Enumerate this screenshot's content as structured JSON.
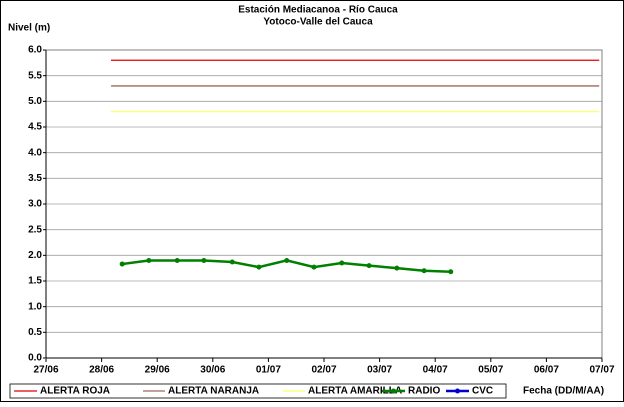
{
  "chart_data": {
    "type": "line",
    "title": "Estación Mediacanoa - Río Cauca",
    "subtitle": "Yotoco-Valle del Cauca",
    "y_label": "Nivel (m)",
    "x_label": "Fecha (DD/M/AA)",
    "xlim": [
      0,
      10
    ],
    "xticks": [
      {
        "value": 0,
        "label": "27/06"
      },
      {
        "value": 1,
        "label": "28/06"
      },
      {
        "value": 2,
        "label": "29/06"
      },
      {
        "value": 3,
        "label": "30/06"
      },
      {
        "value": 4,
        "label": "01/07"
      },
      {
        "value": 5,
        "label": "02/07"
      },
      {
        "value": 6,
        "label": "03/07"
      },
      {
        "value": 7,
        "label": "04/07"
      },
      {
        "value": 8,
        "label": "05/07"
      },
      {
        "value": 9,
        "label": "06/07"
      },
      {
        "value": 10,
        "label": "07/07"
      }
    ],
    "ylim": [
      0,
      6
    ],
    "yticks": [
      {
        "value": 0,
        "label": "0.0"
      },
      0.5,
      {
        "value": 1,
        "label": "1.0"
      },
      1.5,
      {
        "value": 2,
        "label": "2.0"
      },
      2.5,
      {
        "value": 3,
        "label": "3.0"
      },
      3.5,
      {
        "value": 4,
        "label": "4.0"
      },
      4.5,
      {
        "value": 5,
        "label": "5.0"
      },
      5.5,
      {
        "value": 6,
        "label": "6.0"
      }
    ],
    "grid": true,
    "legend": "bottom",
    "series": [
      {
        "name": "ALERTA ROJA",
        "color": "#e00000",
        "marker": false,
        "x": [
          1.17,
          9.95
        ],
        "values": [
          5.8,
          5.8
        ]
      },
      {
        "name": "ALERTA NARANJA",
        "color": "#9c6b5c",
        "marker": false,
        "x": [
          1.17,
          9.95
        ],
        "values": [
          5.3,
          5.3
        ]
      },
      {
        "name": "ALERTA AMARILLA",
        "color": "#ffff66",
        "marker": false,
        "x": [
          1.17,
          9.95
        ],
        "values": [
          4.8,
          4.8
        ]
      },
      {
        "name": "RADIO",
        "color": "#008000",
        "marker": true,
        "x": [
          1.37,
          1.85,
          2.36,
          2.84,
          3.35,
          3.83,
          4.33,
          4.82,
          5.32,
          5.81,
          6.31,
          6.8,
          7.28
        ],
        "values": [
          1.83,
          1.9,
          1.9,
          1.9,
          1.87,
          1.77,
          1.9,
          1.77,
          1.85,
          1.8,
          1.75,
          1.7,
          1.68
        ]
      },
      {
        "name": "CVC",
        "color": "#0000cc",
        "marker": true,
        "x": [],
        "values": []
      }
    ]
  }
}
